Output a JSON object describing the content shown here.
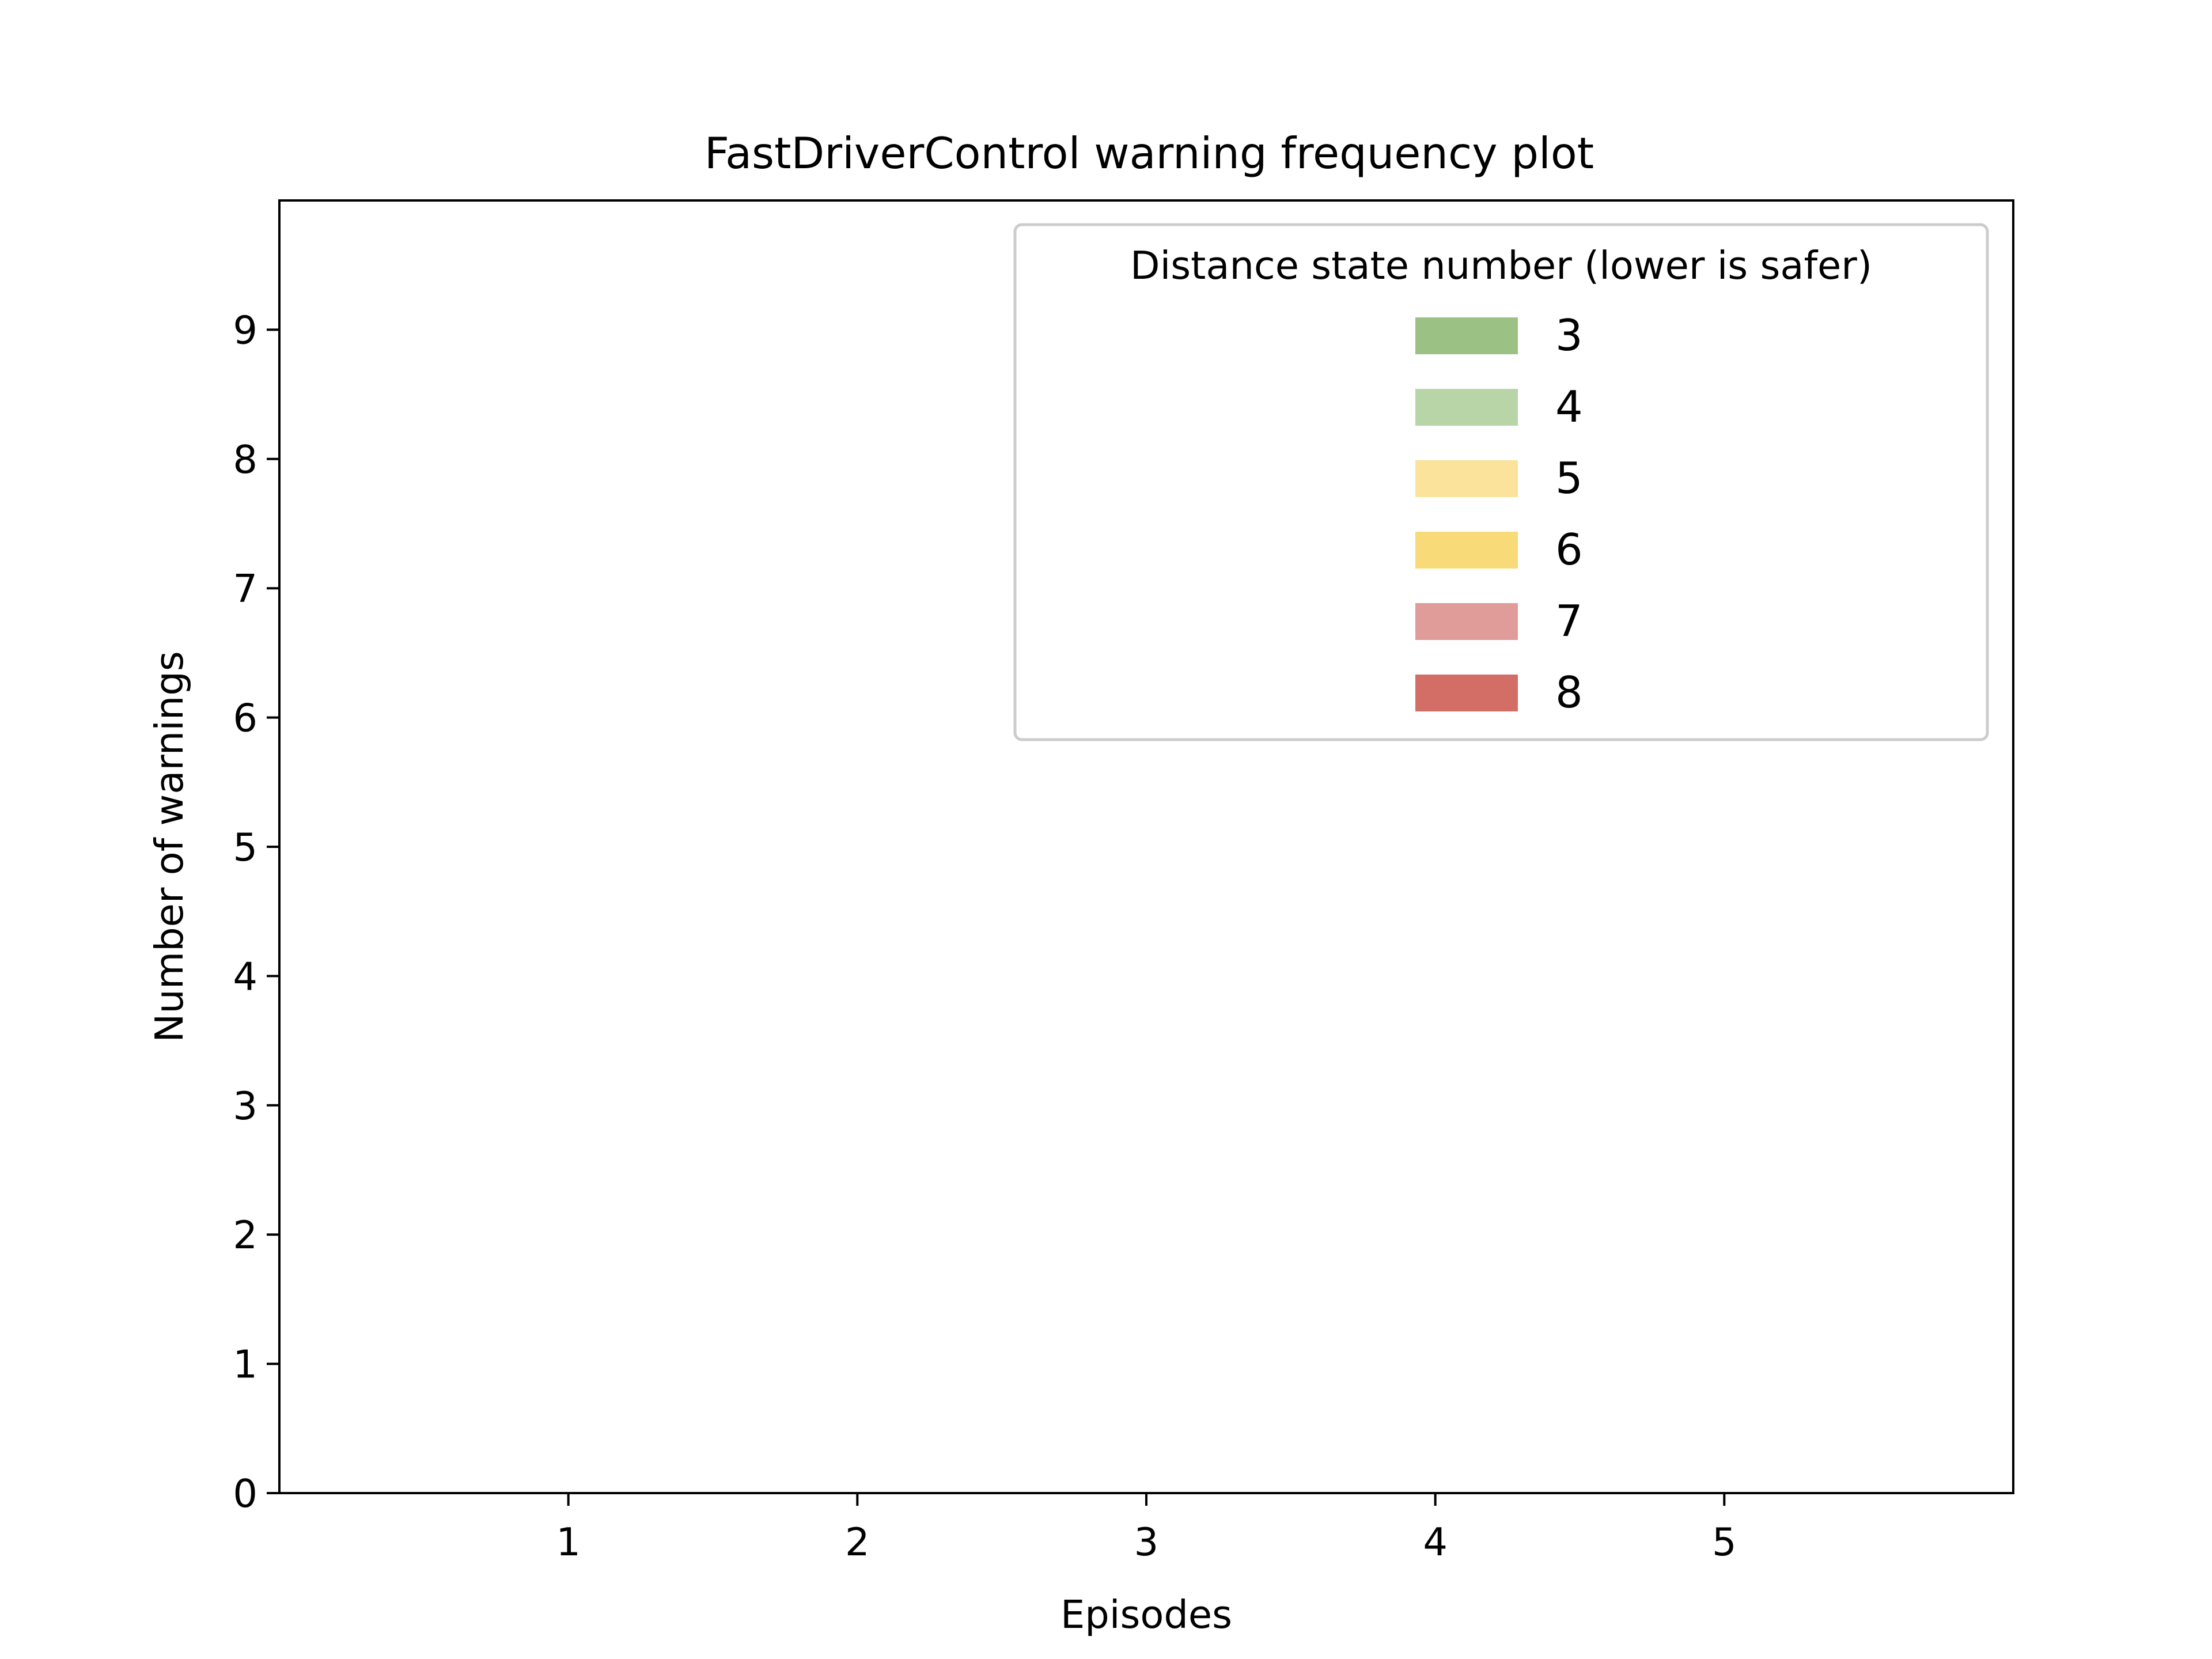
{
  "chart_data": {
    "type": "bar",
    "title": "FastDriverControl warning frequency plot",
    "xlabel": "Episodes",
    "ylabel": "Number of warnings",
    "categories": [
      "1",
      "2",
      "3",
      "4",
      "5"
    ],
    "x": [
      1,
      2,
      3,
      4,
      5
    ],
    "xlim": [
      0,
      6
    ],
    "ylim": [
      0,
      10
    ],
    "yticks": [
      "0",
      "1",
      "2",
      "3",
      "4",
      "5",
      "6",
      "7",
      "8",
      "9"
    ],
    "stacked": true,
    "grid": false,
    "legend": {
      "title": "Distance state number (lower is safer)",
      "placement": "top-right"
    },
    "series": [
      {
        "name": "3",
        "color": "#9bc184",
        "values": [
          0,
          0,
          0,
          0,
          0
        ]
      },
      {
        "name": "4",
        "color": "#b8d5a8",
        "values": [
          0,
          0,
          0,
          0,
          0
        ]
      },
      {
        "name": "5",
        "color": "#fbe39b",
        "values": [
          0,
          0,
          0,
          0,
          0
        ]
      },
      {
        "name": "6",
        "color": "#f8da78",
        "values": [
          0,
          0,
          0,
          0,
          0
        ]
      },
      {
        "name": "7",
        "color": "#e09c98",
        "values": [
          0,
          0,
          0,
          0,
          0
        ]
      },
      {
        "name": "8",
        "color": "#d26e66",
        "values": [
          0,
          0,
          0,
          0,
          0
        ]
      }
    ]
  }
}
